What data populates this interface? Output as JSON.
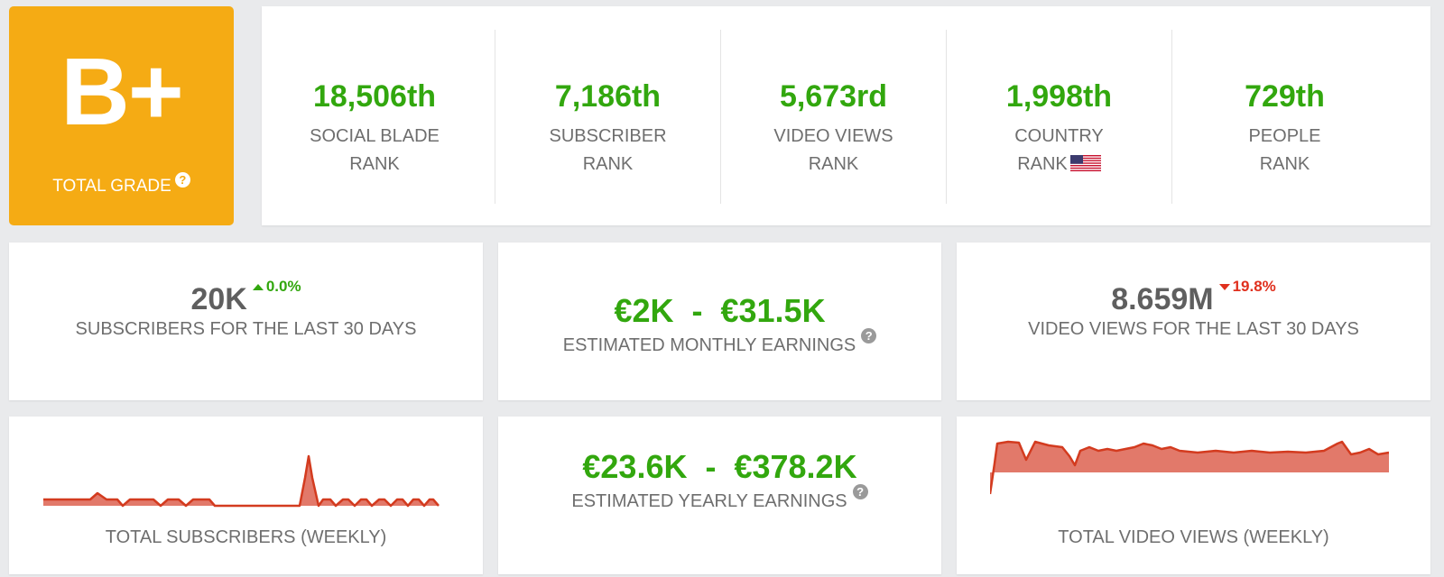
{
  "grade": {
    "letter": "B+",
    "label": "TOTAL GRADE",
    "help": "?"
  },
  "ranks": [
    {
      "value": "18,506th",
      "line1": "SOCIAL BLADE",
      "line2": "RANK"
    },
    {
      "value": "7,186th",
      "line1": "SUBSCRIBER",
      "line2": "RANK"
    },
    {
      "value": "5,673rd",
      "line1": "VIDEO VIEWS",
      "line2": "RANK"
    },
    {
      "value": "1,998th",
      "line1": "COUNTRY",
      "line2": "RANK"
    },
    {
      "value": "729th",
      "line1": "PEOPLE",
      "line2": "RANK"
    }
  ],
  "subscribers": {
    "value": "20K",
    "delta": "0.0%",
    "label": "SUBSCRIBERS FOR THE LAST 30 DAYS"
  },
  "monthly": {
    "value": "€2K  -  €31.5K",
    "label": "ESTIMATED MONTHLY EARNINGS",
    "help": "?"
  },
  "views": {
    "value": "8.659M",
    "delta": "19.8%",
    "label": "VIDEO VIEWS FOR THE LAST 30 DAYS"
  },
  "yearly": {
    "value": "€23.6K  -  €378.2K",
    "label": "ESTIMATED YEARLY EARNINGS",
    "help": "?"
  },
  "subs_chart": {
    "label": "TOTAL SUBSCRIBERS (WEEKLY)"
  },
  "views_chart": {
    "label": "TOTAL VIDEO VIEWS (WEEKLY)"
  },
  "colors": {
    "accent_green": "#32a70e",
    "grade_orange": "#f5ab14",
    "down_red": "#e0301e",
    "spark_line": "#d33b1f",
    "spark_fill": "#e2796a"
  }
}
